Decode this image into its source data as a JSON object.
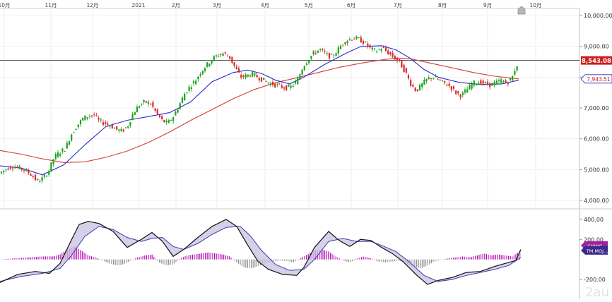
{
  "chart_data": [
    {
      "type": "candlestick",
      "x_ticks": [
        "10月",
        "11月",
        "12月",
        "2021",
        "2月",
        "3月",
        "4月",
        "5月",
        "6月",
        "7月",
        "8月",
        "9月",
        "10月"
      ],
      "y_ticks": [
        "10,000.00",
        "9,000.00",
        "8,000.00",
        "7,000.00",
        "6,000.00",
        "5,000.00",
        "4,000.00"
      ],
      "ylim": [
        3700,
        10400
      ],
      "grid": true,
      "last_price_label": "8,543.08",
      "ma_label": "7,943.51",
      "horizontal_line_value": 8543.08,
      "colors": {
        "up": "#1aa31a",
        "down": "#d42b2b",
        "short_ma": "#2a2ad0",
        "long_ma": "#d43a3a",
        "price_tag": "#cc1f1f"
      },
      "price_path": [
        [
          0,
          4850
        ],
        [
          8,
          4960
        ],
        [
          16,
          5080
        ],
        [
          24,
          5100
        ],
        [
          32,
          5030
        ],
        [
          40,
          4960
        ],
        [
          48,
          4820
        ],
        [
          56,
          4620
        ],
        [
          64,
          4720
        ],
        [
          72,
          4950
        ],
        [
          80,
          5420
        ],
        [
          88,
          5560
        ],
        [
          96,
          5700
        ],
        [
          104,
          6150
        ],
        [
          112,
          6420
        ],
        [
          120,
          6650
        ],
        [
          128,
          6750
        ],
        [
          136,
          6780
        ],
        [
          144,
          6560
        ],
        [
          152,
          6500
        ],
        [
          160,
          6420
        ],
        [
          168,
          6300
        ],
        [
          176,
          6250
        ],
        [
          184,
          6420
        ],
        [
          192,
          6850
        ],
        [
          200,
          7080
        ],
        [
          208,
          7200
        ],
        [
          216,
          7150
        ],
        [
          224,
          6850
        ],
        [
          232,
          6600
        ],
        [
          240,
          6500
        ],
        [
          248,
          6700
        ],
        [
          256,
          7050
        ],
        [
          264,
          7450
        ],
        [
          272,
          7700
        ],
        [
          280,
          7900
        ],
        [
          288,
          8200
        ],
        [
          296,
          8400
        ],
        [
          304,
          8600
        ],
        [
          312,
          8720
        ],
        [
          320,
          8780
        ],
        [
          328,
          8650
        ],
        [
          336,
          8300
        ],
        [
          344,
          8000
        ],
        [
          352,
          8050
        ],
        [
          360,
          8100
        ],
        [
          368,
          8000
        ],
        [
          376,
          7900
        ],
        [
          384,
          7800
        ],
        [
          392,
          7750
        ],
        [
          400,
          7700
        ],
        [
          408,
          7650
        ],
        [
          416,
          7700
        ],
        [
          424,
          7900
        ],
        [
          432,
          8350
        ],
        [
          440,
          8600
        ],
        [
          448,
          8800
        ],
        [
          456,
          8900
        ],
        [
          464,
          8750
        ],
        [
          472,
          8650
        ],
        [
          480,
          8850
        ],
        [
          488,
          9100
        ],
        [
          496,
          9220
        ],
        [
          504,
          9280
        ],
        [
          512,
          9220
        ],
        [
          520,
          9100
        ],
        [
          528,
          8900
        ],
        [
          536,
          8850
        ],
        [
          544,
          8950
        ],
        [
          552,
          8800
        ],
        [
          560,
          8650
        ],
        [
          568,
          8500
        ],
        [
          576,
          8200
        ],
        [
          584,
          7800
        ],
        [
          592,
          7550
        ],
        [
          600,
          7750
        ],
        [
          608,
          7950
        ],
        [
          616,
          8000
        ],
        [
          624,
          7900
        ],
        [
          632,
          7800
        ],
        [
          640,
          7700
        ],
        [
          648,
          7500
        ],
        [
          656,
          7400
        ],
        [
          664,
          7600
        ],
        [
          672,
          7800
        ],
        [
          680,
          7850
        ],
        [
          688,
          7800
        ],
        [
          696,
          7750
        ],
        [
          704,
          7800
        ],
        [
          712,
          7900
        ],
        [
          720,
          7800
        ],
        [
          728,
          8000
        ],
        [
          734,
          8400
        ]
      ],
      "short_ma": [
        [
          0,
          5120
        ],
        [
          30,
          5050
        ],
        [
          60,
          4830
        ],
        [
          90,
          5150
        ],
        [
          120,
          5800
        ],
        [
          150,
          6400
        ],
        [
          180,
          6600
        ],
        [
          210,
          6720
        ],
        [
          240,
          6850
        ],
        [
          270,
          7200
        ],
        [
          300,
          7850
        ],
        [
          330,
          8150
        ],
        [
          350,
          8230
        ],
        [
          370,
          8120
        ],
        [
          390,
          7900
        ],
        [
          410,
          7780
        ],
        [
          430,
          8000
        ],
        [
          460,
          8420
        ],
        [
          490,
          8780
        ],
        [
          510,
          8990
        ],
        [
          540,
          9020
        ],
        [
          560,
          8890
        ],
        [
          580,
          8620
        ],
        [
          600,
          8250
        ],
        [
          620,
          8000
        ],
        [
          650,
          7830
        ],
        [
          680,
          7760
        ],
        [
          710,
          7780
        ],
        [
          734,
          7900
        ]
      ],
      "long_ma": [
        [
          0,
          5620
        ],
        [
          30,
          5500
        ],
        [
          60,
          5350
        ],
        [
          90,
          5230
        ],
        [
          120,
          5250
        ],
        [
          150,
          5400
        ],
        [
          180,
          5600
        ],
        [
          210,
          5880
        ],
        [
          240,
          6220
        ],
        [
          270,
          6600
        ],
        [
          300,
          6950
        ],
        [
          330,
          7300
        ],
        [
          360,
          7600
        ],
        [
          390,
          7820
        ],
        [
          420,
          7980
        ],
        [
          450,
          8150
        ],
        [
          480,
          8320
        ],
        [
          510,
          8450
        ],
        [
          540,
          8560
        ],
        [
          560,
          8620
        ],
        [
          580,
          8600
        ],
        [
          610,
          8450
        ],
        [
          640,
          8300
        ],
        [
          670,
          8150
        ],
        [
          700,
          8030
        ],
        [
          734,
          7943
        ]
      ]
    },
    {
      "type": "line",
      "y_ticks": [
        "400.00",
        "200.00",
        "-200.00"
      ],
      "ylim": [
        -300,
        460
      ],
      "tags": [
        "CHING...",
        "TM.MOJ..."
      ],
      "colors": {
        "macd": "#111111",
        "signal": "#3b3bb6",
        "fill": "#c9c0de",
        "hist_pos": "#b000b0",
        "hist_neg": "#888888"
      },
      "macd": [
        [
          0,
          -230
        ],
        [
          25,
          -150
        ],
        [
          50,
          -120
        ],
        [
          70,
          -140
        ],
        [
          85,
          -40
        ],
        [
          100,
          180
        ],
        [
          112,
          350
        ],
        [
          125,
          380
        ],
        [
          140,
          360
        ],
        [
          160,
          280
        ],
        [
          180,
          120
        ],
        [
          200,
          200
        ],
        [
          215,
          270
        ],
        [
          230,
          180
        ],
        [
          245,
          30
        ],
        [
          260,
          100
        ],
        [
          280,
          220
        ],
        [
          300,
          330
        ],
        [
          320,
          400
        ],
        [
          335,
          330
        ],
        [
          350,
          150
        ],
        [
          365,
          -20
        ],
        [
          380,
          -100
        ],
        [
          400,
          -150
        ],
        [
          420,
          -160
        ],
        [
          430,
          -80
        ],
        [
          445,
          120
        ],
        [
          465,
          280
        ],
        [
          480,
          190
        ],
        [
          495,
          130
        ],
        [
          510,
          200
        ],
        [
          525,
          190
        ],
        [
          540,
          120
        ],
        [
          555,
          60
        ],
        [
          570,
          -20
        ],
        [
          590,
          -160
        ],
        [
          605,
          -250
        ],
        [
          620,
          -210
        ],
        [
          640,
          -180
        ],
        [
          660,
          -130
        ],
        [
          680,
          -120
        ],
        [
          700,
          -70
        ],
        [
          715,
          -40
        ],
        [
          730,
          -10
        ],
        [
          737,
          100
        ]
      ],
      "signal": [
        [
          0,
          -220
        ],
        [
          30,
          -170
        ],
        [
          60,
          -140
        ],
        [
          85,
          -90
        ],
        [
          100,
          30
        ],
        [
          120,
          230
        ],
        [
          140,
          330
        ],
        [
          160,
          300
        ],
        [
          180,
          220
        ],
        [
          200,
          180
        ],
        [
          215,
          210
        ],
        [
          230,
          220
        ],
        [
          245,
          130
        ],
        [
          260,
          100
        ],
        [
          280,
          160
        ],
        [
          300,
          250
        ],
        [
          320,
          320
        ],
        [
          340,
          330
        ],
        [
          355,
          230
        ],
        [
          370,
          90
        ],
        [
          390,
          -50
        ],
        [
          410,
          -110
        ],
        [
          430,
          -100
        ],
        [
          445,
          0
        ],
        [
          465,
          180
        ],
        [
          485,
          210
        ],
        [
          505,
          180
        ],
        [
          525,
          180
        ],
        [
          540,
          140
        ],
        [
          560,
          80
        ],
        [
          580,
          -30
        ],
        [
          600,
          -160
        ],
        [
          620,
          -220
        ],
        [
          640,
          -200
        ],
        [
          660,
          -160
        ],
        [
          680,
          -130
        ],
        [
          700,
          -100
        ],
        [
          720,
          -60
        ],
        [
          737,
          20
        ]
      ],
      "histogram": [
        [
          0,
          0
        ],
        [
          20,
          10
        ],
        [
          40,
          20
        ],
        [
          60,
          30
        ],
        [
          75,
          30
        ],
        [
          85,
          50
        ],
        [
          95,
          100
        ],
        [
          105,
          130
        ],
        [
          115,
          90
        ],
        [
          125,
          40
        ],
        [
          135,
          20
        ],
        [
          145,
          -10
        ],
        [
          155,
          -40
        ],
        [
          165,
          -60
        ],
        [
          175,
          -50
        ],
        [
          185,
          -10
        ],
        [
          195,
          20
        ],
        [
          205,
          40
        ],
        [
          215,
          50
        ],
        [
          225,
          -30
        ],
        [
          235,
          -60
        ],
        [
          245,
          -50
        ],
        [
          255,
          10
        ],
        [
          265,
          40
        ],
        [
          275,
          50
        ],
        [
          285,
          60
        ],
        [
          295,
          70
        ],
        [
          305,
          60
        ],
        [
          315,
          50
        ],
        [
          325,
          30
        ],
        [
          335,
          -30
        ],
        [
          345,
          -80
        ],
        [
          355,
          -90
        ],
        [
          365,
          -70
        ],
        [
          375,
          -40
        ],
        [
          385,
          -20
        ],
        [
          395,
          -10
        ],
        [
          405,
          -15
        ],
        [
          415,
          -30
        ],
        [
          425,
          10
        ],
        [
          435,
          50
        ],
        [
          445,
          90
        ],
        [
          455,
          100
        ],
        [
          465,
          80
        ],
        [
          475,
          30
        ],
        [
          485,
          -10
        ],
        [
          495,
          -30
        ],
        [
          505,
          10
        ],
        [
          515,
          30
        ],
        [
          525,
          10
        ],
        [
          535,
          -20
        ],
        [
          545,
          -30
        ],
        [
          555,
          -20
        ],
        [
          565,
          -10
        ],
        [
          575,
          -40
        ],
        [
          585,
          -70
        ],
        [
          595,
          -90
        ],
        [
          605,
          -60
        ],
        [
          615,
          -20
        ],
        [
          625,
          0
        ],
        [
          635,
          10
        ],
        [
          645,
          20
        ],
        [
          655,
          30
        ],
        [
          665,
          20
        ],
        [
          675,
          40
        ],
        [
          685,
          60
        ],
        [
          695,
          40
        ],
        [
          705,
          50
        ],
        [
          715,
          40
        ],
        [
          725,
          30
        ],
        [
          735,
          80
        ]
      ]
    }
  ]
}
